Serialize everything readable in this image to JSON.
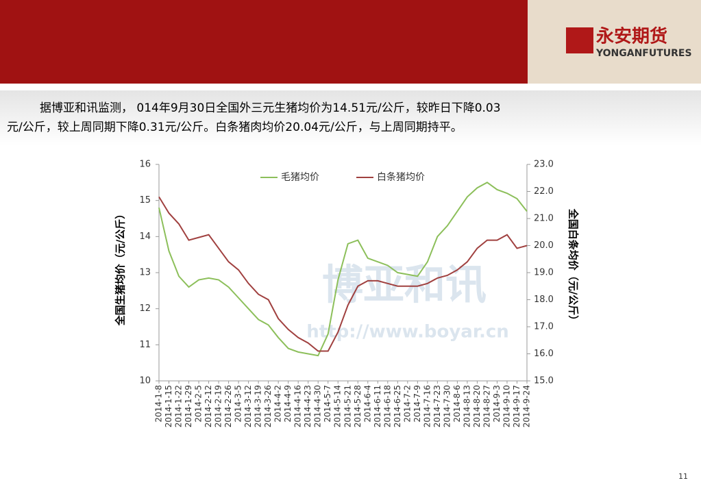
{
  "header": {
    "logo_cn": "永安期货",
    "logo_en": "YONGANFUTURES"
  },
  "paragraph": {
    "lines": [
      "据博亚和讯监测， 014年9月30日全国外三元生猪均价为14.51元/公斤，较昨日下降0.03",
      "元/公斤，较上周同期下降0.31元/公斤。白条猪肉均价20.04元/公斤，与上周同期持平。"
    ]
  },
  "watermark": {
    "name": "博亚和讯",
    "url": "http://www.boyar.cn"
  },
  "page_number": "11",
  "chart_data": {
    "type": "line",
    "y_label": "全国生猪均价（元/公斤）",
    "y2_label": "全国白条均价（元/公斤）",
    "x": [
      "2014-1-8",
      "2014-1-15",
      "2014-1-22",
      "2014-1-29",
      "2014-2-5",
      "2014-2-12",
      "2014-2-19",
      "2014-2-26",
      "2014-3-5",
      "2014-3-12",
      "2014-3-19",
      "2014-3-26",
      "2014-4-2",
      "2014-4-9",
      "2014-4-16",
      "2014-4-23",
      "2014-4-30",
      "2014-5-7",
      "2014-5-14",
      "2014-5-21",
      "2014-5-28",
      "2014-6-4",
      "2014-6-11",
      "2014-6-18",
      "2014-6-25",
      "2014-7-2",
      "2014-7-9",
      "2014-7-16",
      "2014-7-23",
      "2014-7-30",
      "2014-8-6",
      "2014-8-13",
      "2014-8-20",
      "2014-8-27",
      "2014-9-3",
      "2014-9-10",
      "2014-9-17",
      "2014-9-24"
    ],
    "series": [
      {
        "name": "毛猪均价",
        "color": "#8cbf5a",
        "values": [
          14.8,
          13.6,
          12.9,
          12.6,
          12.8,
          12.85,
          12.8,
          12.6,
          12.3,
          12.0,
          11.7,
          11.55,
          11.2,
          10.9,
          10.8,
          10.75,
          10.7,
          11.3,
          12.8,
          13.8,
          13.9,
          13.4,
          13.3,
          13.2,
          13.0,
          12.95,
          12.9,
          13.3,
          14.0,
          14.3,
          14.7,
          15.1,
          15.35,
          15.5,
          15.3,
          15.2,
          15.05,
          14.7
        ]
      },
      {
        "name": "白条猪均价",
        "color": "#a0403f",
        "axis": "y2",
        "values": [
          21.8,
          21.2,
          20.8,
          20.2,
          20.3,
          20.4,
          19.9,
          19.4,
          19.1,
          18.6,
          18.2,
          18.0,
          17.3,
          16.9,
          16.6,
          16.4,
          16.1,
          16.1,
          16.8,
          17.8,
          18.5,
          18.7,
          18.7,
          18.6,
          18.5,
          18.5,
          18.5,
          18.6,
          18.8,
          18.9,
          19.1,
          19.4,
          19.9,
          20.2,
          20.2,
          20.4,
          19.9,
          20.0
        ]
      }
    ],
    "ylim": [
      10,
      16
    ],
    "yticks": [
      10,
      11,
      12,
      13,
      14,
      15,
      16
    ],
    "y2lim": [
      15,
      23
    ],
    "y2ticks": [
      {
        "value": 15,
        "label": "15.0"
      },
      {
        "value": 16,
        "label": "16.0"
      },
      {
        "value": 17,
        "label": "17.0"
      },
      {
        "value": 18,
        "label": "18.0"
      },
      {
        "value": 19,
        "label": "19.0"
      },
      {
        "value": 20,
        "label": "20.0"
      },
      {
        "value": 21,
        "label": "21.0"
      },
      {
        "value": 22,
        "label": "22.0"
      },
      {
        "value": 23,
        "label": "23.0"
      }
    ]
  }
}
